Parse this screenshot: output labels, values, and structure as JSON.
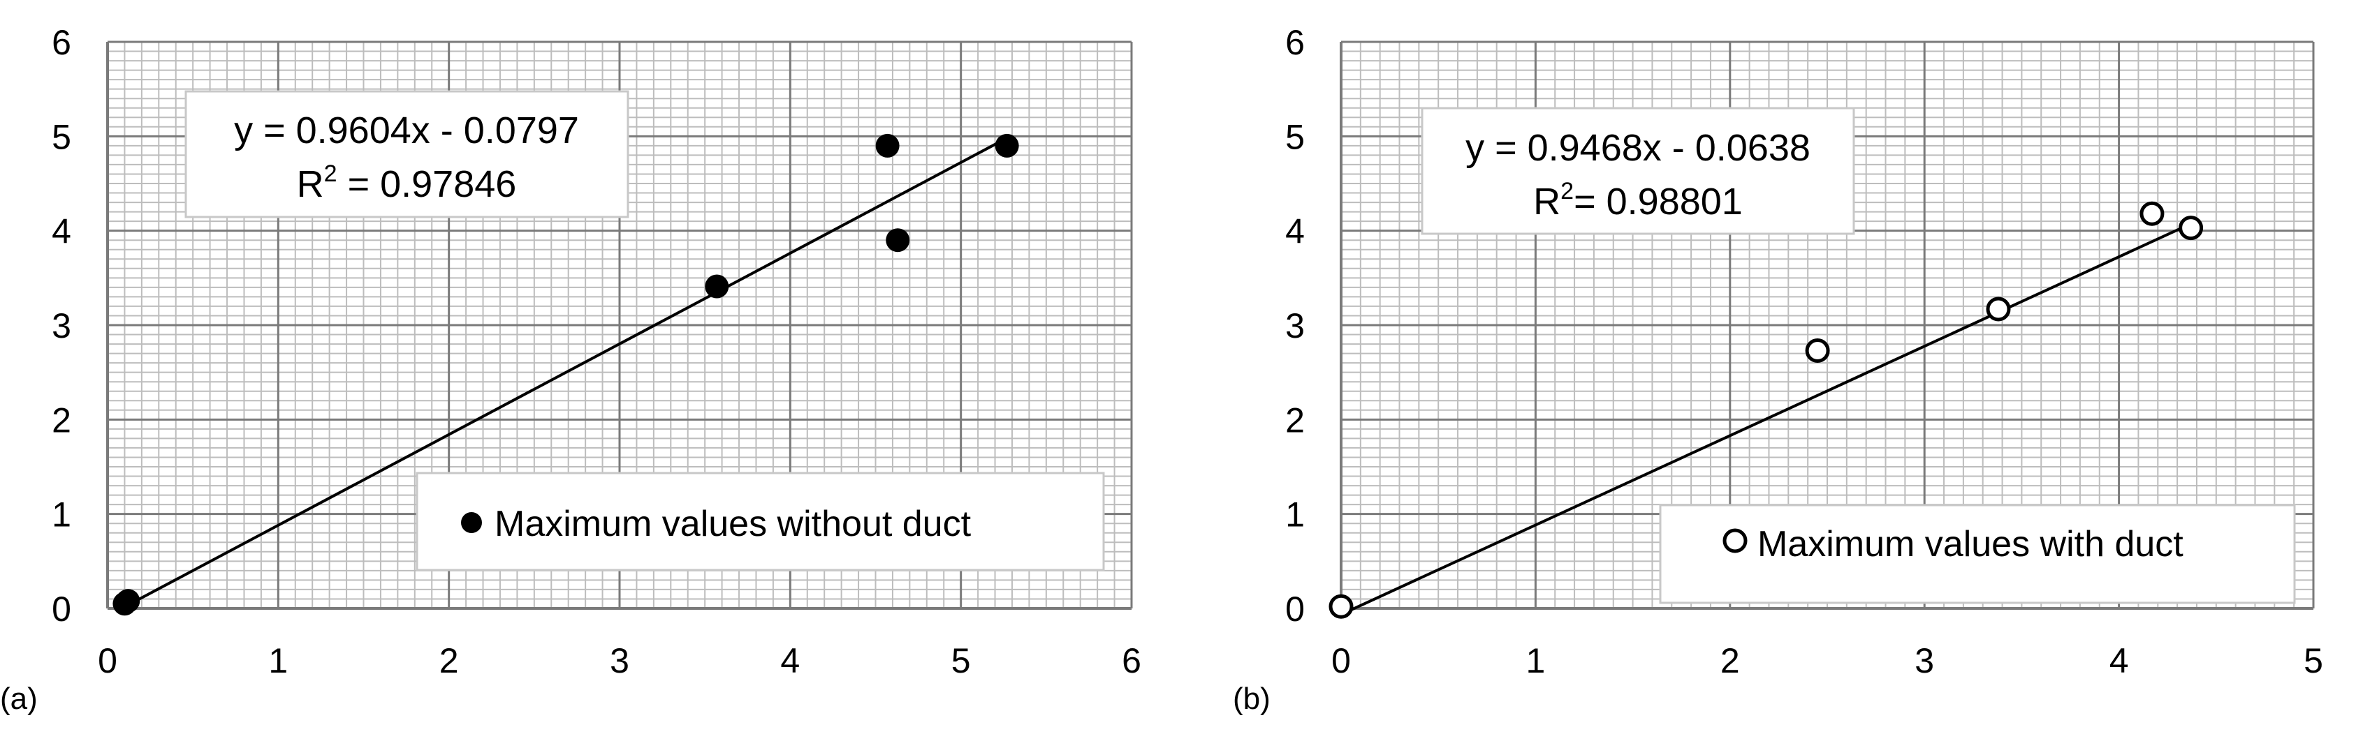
{
  "chart_data": [
    {
      "type": "scatter",
      "panel_label": "(a)",
      "title": "",
      "xlabel": "",
      "ylabel": "",
      "xlim": [
        0,
        6
      ],
      "ylim": [
        0,
        6
      ],
      "x_ticks": [
        "0",
        "1",
        "2",
        "3",
        "4",
        "5",
        "6"
      ],
      "y_ticks": [
        "0",
        "1",
        "2",
        "3",
        "4",
        "5",
        "6"
      ],
      "grid": true,
      "legend_position": "bottom-right",
      "series": [
        {
          "name": "Maximum values without duct",
          "marker": "filled-circle",
          "color": "#000000",
          "points": [
            {
              "x": 0.1,
              "y": 0.05
            },
            {
              "x": 0.12,
              "y": 0.08
            },
            {
              "x": 3.57,
              "y": 3.41
            },
            {
              "x": 4.57,
              "y": 4.9
            },
            {
              "x": 4.63,
              "y": 3.9
            },
            {
              "x": 5.27,
              "y": 4.9
            }
          ]
        }
      ],
      "trendline": {
        "slope": 0.9604,
        "intercept": -0.0797,
        "x_range": [
          0.1,
          5.27
        ],
        "equation": "y = 0.9604x - 0.0797",
        "r2_prefix": "R",
        "r2_sup": "2",
        "r2_value": " = 0.97846"
      }
    },
    {
      "type": "scatter",
      "panel_label": "(b)",
      "title": "",
      "xlabel": "",
      "ylabel": "",
      "xlim": [
        0,
        5
      ],
      "ylim": [
        0,
        6
      ],
      "x_ticks": [
        "0",
        "1",
        "2",
        "3",
        "4",
        "5"
      ],
      "y_ticks": [
        "0",
        "1",
        "2",
        "3",
        "4",
        "5",
        "6"
      ],
      "grid": true,
      "legend_position": "bottom-right",
      "series": [
        {
          "name": "Maximum values with duct",
          "marker": "open-circle",
          "color": "#000000",
          "points": [
            {
              "x": 0.0,
              "y": 0.02
            },
            {
              "x": 2.45,
              "y": 2.73
            },
            {
              "x": 3.38,
              "y": 3.17
            },
            {
              "x": 4.17,
              "y": 4.18
            },
            {
              "x": 4.37,
              "y": 4.03
            }
          ]
        }
      ],
      "trendline": {
        "slope": 0.9468,
        "intercept": -0.0638,
        "x_range": [
          0.0,
          4.37
        ],
        "equation": "y = 0.9468x - 0.0638",
        "r2_prefix": "R",
        "r2_sup": "2",
        "r2_value": "= 0.98801"
      }
    }
  ]
}
